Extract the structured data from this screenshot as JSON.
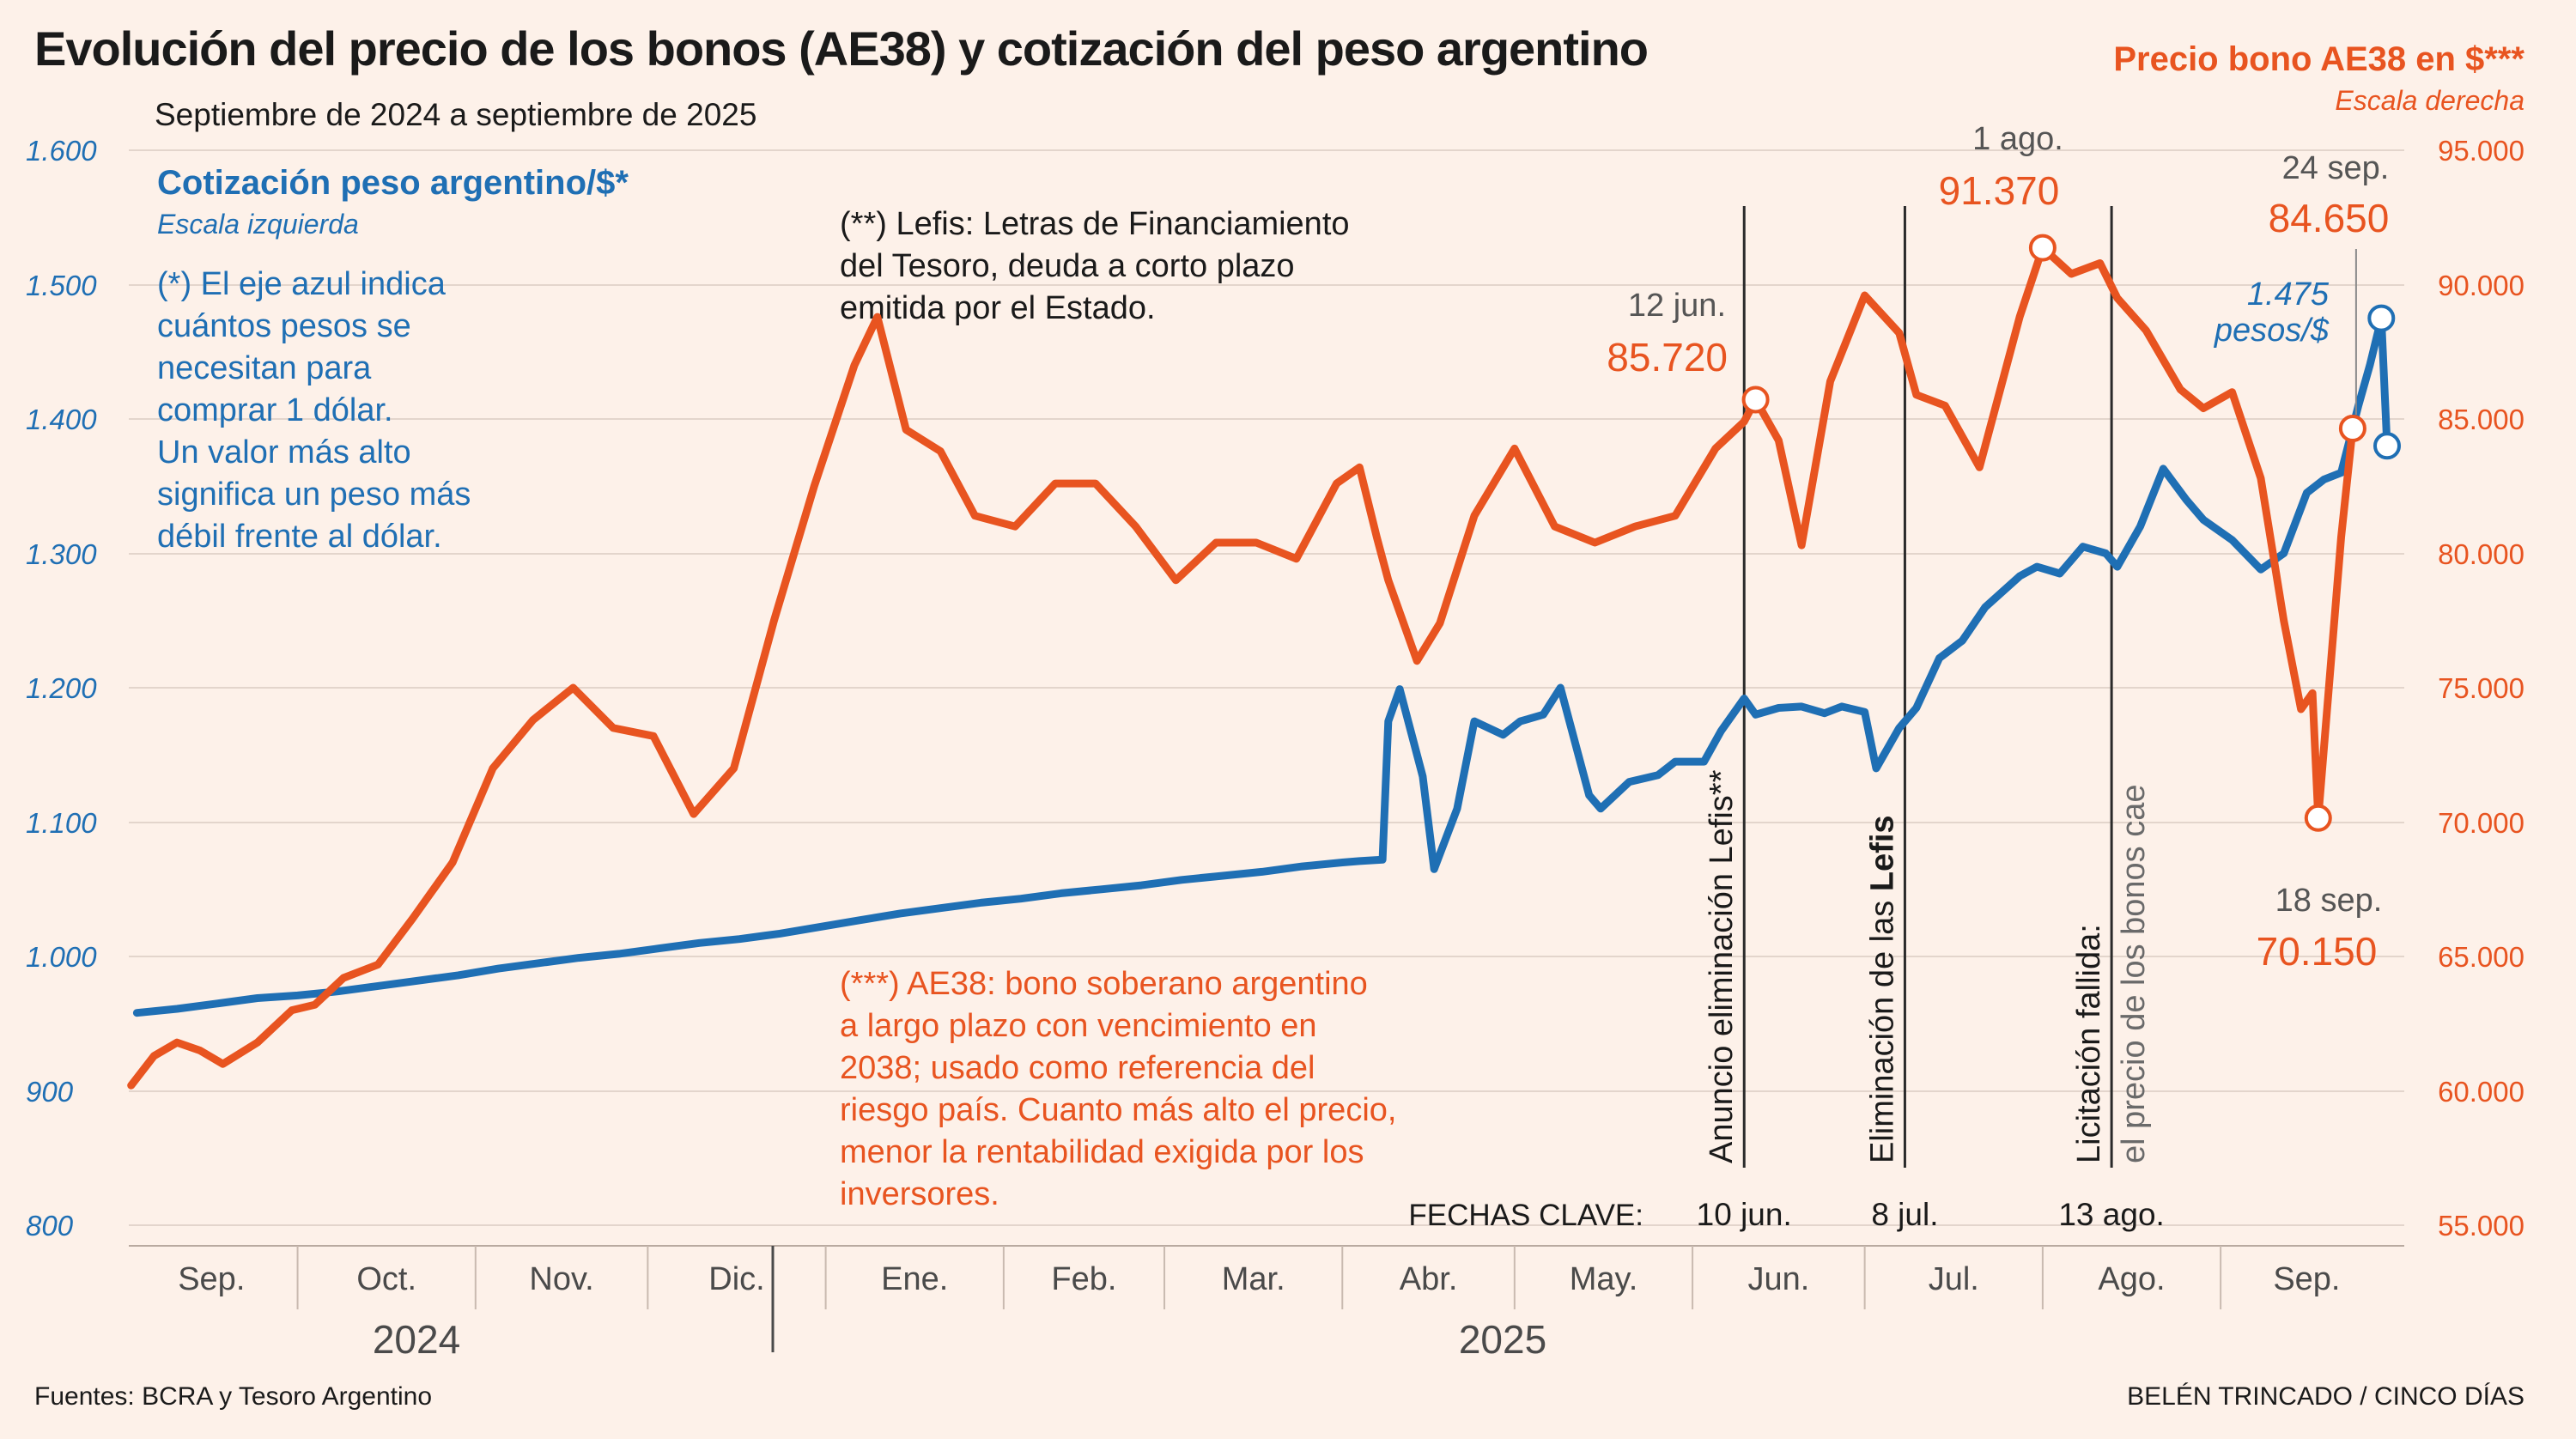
{
  "title": "Evolución del precio de los bonos (AE38) y cotización del peso argentino",
  "subtitle": "Septiembre de 2024 a septiembre de 2025",
  "colors": {
    "blue": "#1f6fb4",
    "orange": "#e85420",
    "text": "#1a1a1a",
    "grey": "#5a5a5a",
    "background": "#fdf1e9"
  },
  "left_axis": {
    "title": "Cotización peso argentino/$*",
    "note": "Escala izquierda",
    "ticks": [
      "1.600",
      "1.500",
      "1.400",
      "1.300",
      "1.200",
      "1.100",
      "1.000",
      "900",
      "800"
    ]
  },
  "right_axis": {
    "title": "Precio bono AE38 en $***",
    "note": "Escala derecha",
    "ticks": [
      "95.000",
      "90.000",
      "85.000",
      "80.000",
      "75.000",
      "70.000",
      "65.000",
      "60.000",
      "55.000"
    ]
  },
  "notes": {
    "peso": [
      "(*) El eje azul indica",
      "cuántos pesos se",
      "necesitan para",
      "comprar 1 dólar.",
      "Un valor más alto",
      "significa un peso más",
      "débil frente al dólar."
    ],
    "lefis": [
      "(**) Lefis: Letras de Financiamiento",
      "del Tesoro, deuda a corto plazo",
      "emitida por el Estado."
    ],
    "ae38": [
      "(***) AE38: bono soberano argentino",
      "a largo plazo con vencimiento en",
      "2038; usado como referencia del",
      "riesgo país. Cuanto más alto el precio,",
      "menor la rentabilidad exigida por los",
      "inversores."
    ]
  },
  "annotations": {
    "jun12": {
      "date": "12 jun.",
      "value": "85.720"
    },
    "aug1": {
      "date": "1 ago.",
      "value": "91.370"
    },
    "sep24": {
      "date": "24 sep.",
      "value": "84.650",
      "peso_value": "1.475",
      "peso_unit": "pesos/$"
    },
    "sep18": {
      "date": "18 sep.",
      "value": "70.150"
    }
  },
  "key_events": {
    "label": "FECHAS CLAVE:",
    "items": [
      {
        "text": "Anuncio eliminación Lefis**",
        "date": "10 jun."
      },
      {
        "text_pre": "Eliminación de las ",
        "text_bold": "Lefis",
        "date": "8 jul."
      },
      {
        "text": "Licitación fallida:",
        "text2": "el precio de los bonos cae",
        "date": "13 ago."
      }
    ]
  },
  "months": [
    "Sep.",
    "Oct.",
    "Nov.",
    "Dic.",
    "Ene.",
    "Feb.",
    "Mar.",
    "Abr.",
    "May.",
    "Jun.",
    "Jul.",
    "Ago.",
    "Sep."
  ],
  "years": [
    "2024",
    "2025"
  ],
  "source": "Fuentes: BCRA y Tesoro Argentino",
  "credit": "BELÉN TRINCADO / CINCO DÍAS",
  "chart_data": {
    "type": "line",
    "title": "Evolución del precio de los bonos (AE38) y cotización del peso argentino",
    "x_range": [
      "2024-09-01",
      "2025-09-30"
    ],
    "left_ylim": [
      800,
      1600
    ],
    "right_ylim": [
      55000,
      95000
    ],
    "series": [
      {
        "name": "Cotización peso argentino/$*",
        "axis": "left",
        "points": [
          [
            "2024-09-03",
            958
          ],
          [
            "2024-09-10",
            961
          ],
          [
            "2024-09-17",
            965
          ],
          [
            "2024-09-24",
            969
          ],
          [
            "2024-10-01",
            971
          ],
          [
            "2024-10-08",
            974
          ],
          [
            "2024-10-15",
            978
          ],
          [
            "2024-10-22",
            982
          ],
          [
            "2024-10-29",
            986
          ],
          [
            "2024-11-05",
            991
          ],
          [
            "2024-11-12",
            995
          ],
          [
            "2024-11-19",
            999
          ],
          [
            "2024-11-26",
            1002
          ],
          [
            "2024-12-03",
            1006
          ],
          [
            "2024-12-10",
            1010
          ],
          [
            "2024-12-17",
            1013
          ],
          [
            "2024-12-24",
            1017
          ],
          [
            "2024-12-31",
            1022
          ],
          [
            "2025-01-07",
            1027
          ],
          [
            "2025-01-14",
            1032
          ],
          [
            "2025-01-21",
            1036
          ],
          [
            "2025-01-28",
            1040
          ],
          [
            "2025-02-04",
            1043
          ],
          [
            "2025-02-11",
            1047
          ],
          [
            "2025-02-18",
            1050
          ],
          [
            "2025-02-25",
            1053
          ],
          [
            "2025-03-04",
            1057
          ],
          [
            "2025-03-11",
            1060
          ],
          [
            "2025-03-18",
            1063
          ],
          [
            "2025-03-25",
            1067
          ],
          [
            "2025-04-01",
            1070
          ],
          [
            "2025-04-04",
            1071
          ],
          [
            "2025-04-08",
            1072
          ],
          [
            "2025-04-09",
            1175
          ],
          [
            "2025-04-11",
            1199
          ],
          [
            "2025-04-15",
            1134
          ],
          [
            "2025-04-17",
            1065
          ],
          [
            "2025-04-21",
            1110
          ],
          [
            "2025-04-24",
            1175
          ],
          [
            "2025-04-29",
            1165
          ],
          [
            "2025-05-02",
            1175
          ],
          [
            "2025-05-06",
            1180
          ],
          [
            "2025-05-09",
            1200
          ],
          [
            "2025-05-14",
            1120
          ],
          [
            "2025-05-16",
            1110
          ],
          [
            "2025-05-21",
            1130
          ],
          [
            "2025-05-26",
            1135
          ],
          [
            "2025-05-29",
            1145
          ],
          [
            "2025-06-03",
            1145
          ],
          [
            "2025-06-06",
            1168
          ],
          [
            "2025-06-10",
            1192
          ],
          [
            "2025-06-12",
            1180
          ],
          [
            "2025-06-16",
            1185
          ],
          [
            "2025-06-20",
            1186
          ],
          [
            "2025-06-24",
            1181
          ],
          [
            "2025-06-27",
            1186
          ],
          [
            "2025-07-01",
            1182
          ],
          [
            "2025-07-03",
            1140
          ],
          [
            "2025-07-07",
            1170
          ],
          [
            "2025-07-10",
            1185
          ],
          [
            "2025-07-14",
            1222
          ],
          [
            "2025-07-18",
            1235
          ],
          [
            "2025-07-22",
            1260
          ],
          [
            "2025-07-28",
            1283
          ],
          [
            "2025-07-31",
            1290
          ],
          [
            "2025-08-04",
            1285
          ],
          [
            "2025-08-08",
            1305
          ],
          [
            "2025-08-12",
            1300
          ],
          [
            "2025-08-14",
            1290
          ],
          [
            "2025-08-18",
            1320
          ],
          [
            "2025-08-22",
            1363
          ],
          [
            "2025-08-26",
            1340
          ],
          [
            "2025-08-29",
            1325
          ],
          [
            "2025-09-03",
            1310
          ],
          [
            "2025-09-08",
            1288
          ],
          [
            "2025-09-12",
            1300
          ],
          [
            "2025-09-16",
            1345
          ],
          [
            "2025-09-19",
            1355
          ],
          [
            "2025-09-22",
            1360
          ],
          [
            "2025-09-25",
            1410
          ],
          [
            "2025-09-27",
            1440
          ],
          [
            "2025-09-29",
            1475
          ],
          [
            "2025-09-30",
            1380
          ]
        ]
      },
      {
        "name": "Precio bono AE38 en $***",
        "axis": "right",
        "points": [
          [
            "2024-09-02",
            60200
          ],
          [
            "2024-09-06",
            61300
          ],
          [
            "2024-09-10",
            61800
          ],
          [
            "2024-09-14",
            61500
          ],
          [
            "2024-09-18",
            61000
          ],
          [
            "2024-09-24",
            61800
          ],
          [
            "2024-09-30",
            63000
          ],
          [
            "2024-10-04",
            63200
          ],
          [
            "2024-10-09",
            64200
          ],
          [
            "2024-10-15",
            64700
          ],
          [
            "2024-10-21",
            66400
          ],
          [
            "2024-10-28",
            68500
          ],
          [
            "2024-11-04",
            72000
          ],
          [
            "2024-11-11",
            73800
          ],
          [
            "2024-11-18",
            75000
          ],
          [
            "2024-11-25",
            73500
          ],
          [
            "2024-12-02",
            73200
          ],
          [
            "2024-12-09",
            70300
          ],
          [
            "2024-12-16",
            72000
          ],
          [
            "2024-12-23",
            77500
          ],
          [
            "2024-12-30",
            82500
          ],
          [
            "2025-01-06",
            87000
          ],
          [
            "2025-01-10",
            88800
          ],
          [
            "2025-01-15",
            84600
          ],
          [
            "2025-01-21",
            83800
          ],
          [
            "2025-01-27",
            81400
          ],
          [
            "2025-02-03",
            81000
          ],
          [
            "2025-02-10",
            82600
          ],
          [
            "2025-02-17",
            82600
          ],
          [
            "2025-02-24",
            81000
          ],
          [
            "2025-03-03",
            79000
          ],
          [
            "2025-03-10",
            80400
          ],
          [
            "2025-03-17",
            80400
          ],
          [
            "2025-03-24",
            79800
          ],
          [
            "2025-03-31",
            82600
          ],
          [
            "2025-04-04",
            83200
          ],
          [
            "2025-04-07",
            80600
          ],
          [
            "2025-04-09",
            79000
          ],
          [
            "2025-04-14",
            76000
          ],
          [
            "2025-04-18",
            77400
          ],
          [
            "2025-04-24",
            81400
          ],
          [
            "2025-05-01",
            83900
          ],
          [
            "2025-05-08",
            81000
          ],
          [
            "2025-05-15",
            80400
          ],
          [
            "2025-05-22",
            81000
          ],
          [
            "2025-05-29",
            81400
          ],
          [
            "2025-06-05",
            83900
          ],
          [
            "2025-06-10",
            84900
          ],
          [
            "2025-06-12",
            85720
          ],
          [
            "2025-06-16",
            84200
          ],
          [
            "2025-06-20",
            80300
          ],
          [
            "2025-06-25",
            86400
          ],
          [
            "2025-07-01",
            89600
          ],
          [
            "2025-07-07",
            88200
          ],
          [
            "2025-07-10",
            85900
          ],
          [
            "2025-07-15",
            85500
          ],
          [
            "2025-07-21",
            83200
          ],
          [
            "2025-07-28",
            88800
          ],
          [
            "2025-08-01",
            91370
          ],
          [
            "2025-08-06",
            90400
          ],
          [
            "2025-08-11",
            90800
          ],
          [
            "2025-08-14",
            89500
          ],
          [
            "2025-08-19",
            88300
          ],
          [
            "2025-08-25",
            86100
          ],
          [
            "2025-08-29",
            85400
          ],
          [
            "2025-09-03",
            86000
          ],
          [
            "2025-09-08",
            82800
          ],
          [
            "2025-09-12",
            77500
          ],
          [
            "2025-09-15",
            74200
          ],
          [
            "2025-09-17",
            74800
          ],
          [
            "2025-09-18",
            70150
          ],
          [
            "2025-09-22",
            80600
          ],
          [
            "2025-09-24",
            84650
          ]
        ]
      }
    ],
    "events": [
      {
        "date": "2025-06-10",
        "label": "Anuncio eliminación Lefis**"
      },
      {
        "date": "2025-07-08",
        "label": "Eliminación de las Lefis"
      },
      {
        "date": "2025-08-13",
        "label": "Licitación fallida: el precio de los bonos cae"
      }
    ],
    "markers": [
      {
        "series": "Precio bono AE38 en $***",
        "date": "2025-06-12",
        "value": 85720
      },
      {
        "series": "Precio bono AE38 en $***",
        "date": "2025-08-01",
        "value": 91370
      },
      {
        "series": "Precio bono AE38 en $***",
        "date": "2025-09-18",
        "value": 70150
      },
      {
        "series": "Precio bono AE38 en $***",
        "date": "2025-09-24",
        "value": 84650
      },
      {
        "series": "Cotización peso argentino/$*",
        "date": "2025-09-29",
        "value": 1475
      }
    ]
  }
}
